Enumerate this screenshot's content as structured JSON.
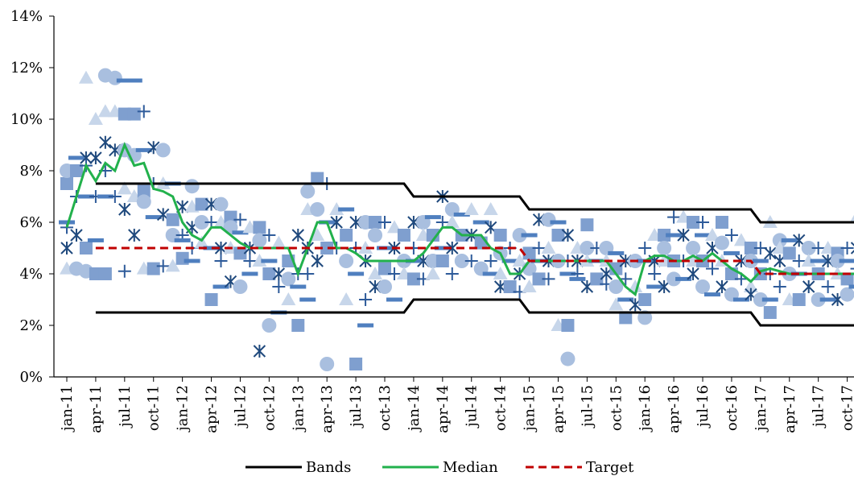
{
  "chart_data": {
    "type": "line",
    "y_ticks": [
      "0%",
      "2%",
      "4%",
      "6%",
      "8%",
      "10%",
      "12%",
      "14%"
    ],
    "ylim": [
      0,
      14
    ],
    "x_ticks": [
      "jan-11",
      "apr-11",
      "jul-11",
      "oct-11",
      "jan-12",
      "apr-12",
      "jul-12",
      "oct-12",
      "jan-13",
      "apr-13",
      "jul-13",
      "oct-13",
      "jan-14",
      "apr-14",
      "jul-14",
      "oct-14",
      "jan-15",
      "apr-15",
      "jul-15",
      "oct-15",
      "jan-16",
      "apr-16",
      "jul-16",
      "oct-16",
      "jan-17",
      "apr-17",
      "jul-17",
      "oct-17"
    ],
    "legend": {
      "placement": "bottom"
    },
    "grid": false,
    "colors": {
      "bands": "#000000",
      "median": "#22b14c",
      "target": "#c00000",
      "scatter": [
        "#1f497d",
        "#2e5b9a",
        "#4f7fbf",
        "#7f9fcf",
        "#a9bfdf",
        "#c7d6ea"
      ]
    },
    "series": [
      {
        "name": "Bands",
        "upper": [
          [
            "2011-04",
            7.5
          ],
          [
            "2013-12",
            7.5
          ],
          [
            "2014-01",
            7.0
          ],
          [
            "2014-12",
            7.0
          ],
          [
            "2015-01",
            6.5
          ],
          [
            "2016-12",
            6.5
          ],
          [
            "2017-01",
            6.0
          ],
          [
            "2017-12",
            6.0
          ]
        ],
        "lower": [
          [
            "2011-04",
            2.5
          ],
          [
            "2013-12",
            2.5
          ],
          [
            "2014-01",
            3.0
          ],
          [
            "2014-12",
            3.0
          ],
          [
            "2015-01",
            2.5
          ],
          [
            "2016-12",
            2.5
          ],
          [
            "2017-01",
            2.0
          ],
          [
            "2017-12",
            2.0
          ]
        ]
      },
      {
        "name": "Median",
        "points": [
          [
            "2011-01",
            5.8
          ],
          [
            "2011-02",
            7.0
          ],
          [
            "2011-03",
            8.2
          ],
          [
            "2011-04",
            7.6
          ],
          [
            "2011-05",
            8.3
          ],
          [
            "2011-06",
            8.0
          ],
          [
            "2011-07",
            9.0
          ],
          [
            "2011-08",
            8.2
          ],
          [
            "2011-09",
            8.3
          ],
          [
            "2011-10",
            7.3
          ],
          [
            "2011-11",
            7.2
          ],
          [
            "2011-12",
            7.0
          ],
          [
            "2012-01",
            6.0
          ],
          [
            "2012-02",
            5.5
          ],
          [
            "2012-03",
            5.3
          ],
          [
            "2012-04",
            5.8
          ],
          [
            "2012-05",
            5.8
          ],
          [
            "2012-06",
            5.5
          ],
          [
            "2012-07",
            5.2
          ],
          [
            "2012-08",
            5.0
          ],
          [
            "2012-09",
            5.0
          ],
          [
            "2012-10",
            5.0
          ],
          [
            "2012-11",
            5.0
          ],
          [
            "2012-12",
            5.0
          ],
          [
            "2013-01",
            4.0
          ],
          [
            "2013-02",
            5.0
          ],
          [
            "2013-03",
            6.0
          ],
          [
            "2013-04",
            6.0
          ],
          [
            "2013-05",
            5.0
          ],
          [
            "2013-06",
            5.0
          ],
          [
            "2013-07",
            4.8
          ],
          [
            "2013-08",
            4.5
          ],
          [
            "2013-09",
            4.5
          ],
          [
            "2013-10",
            4.5
          ],
          [
            "2013-11",
            4.5
          ],
          [
            "2013-12",
            4.5
          ],
          [
            "2014-01",
            4.5
          ],
          [
            "2014-02",
            4.8
          ],
          [
            "2014-03",
            5.3
          ],
          [
            "2014-04",
            5.8
          ],
          [
            "2014-05",
            5.8
          ],
          [
            "2014-06",
            5.5
          ],
          [
            "2014-07",
            5.5
          ],
          [
            "2014-08",
            5.5
          ],
          [
            "2014-09",
            5.0
          ],
          [
            "2014-10",
            4.8
          ],
          [
            "2014-11",
            4.0
          ],
          [
            "2014-12",
            4.0
          ],
          [
            "2015-01",
            4.5
          ],
          [
            "2015-02",
            4.5
          ],
          [
            "2015-03",
            4.5
          ],
          [
            "2015-04",
            4.5
          ],
          [
            "2015-05",
            4.5
          ],
          [
            "2015-06",
            4.5
          ],
          [
            "2015-07",
            4.5
          ],
          [
            "2015-08",
            4.5
          ],
          [
            "2015-09",
            4.5
          ],
          [
            "2015-10",
            4.0
          ],
          [
            "2015-11",
            3.5
          ],
          [
            "2015-12",
            3.2
          ],
          [
            "2016-01",
            4.5
          ],
          [
            "2016-02",
            4.7
          ],
          [
            "2016-03",
            4.7
          ],
          [
            "2016-04",
            4.5
          ],
          [
            "2016-05",
            4.5
          ],
          [
            "2016-06",
            4.7
          ],
          [
            "2016-07",
            4.5
          ],
          [
            "2016-08",
            4.8
          ],
          [
            "2016-09",
            4.5
          ],
          [
            "2016-10",
            4.2
          ],
          [
            "2016-11",
            4.0
          ],
          [
            "2016-12",
            3.7
          ],
          [
            "2017-01",
            4.1
          ],
          [
            "2017-02",
            4.2
          ],
          [
            "2017-03",
            4.1
          ],
          [
            "2017-04",
            4.0
          ],
          [
            "2017-05",
            4.0
          ],
          [
            "2017-06",
            4.0
          ],
          [
            "2017-07",
            4.0
          ],
          [
            "2017-08",
            4.0
          ],
          [
            "2017-09",
            4.0
          ],
          [
            "2017-10",
            4.0
          ],
          [
            "2017-11",
            4.0
          ],
          [
            "2017-12",
            4.5
          ]
        ]
      },
      {
        "name": "Target",
        "points": [
          [
            "2011-04",
            5.0
          ],
          [
            "2014-12",
            5.0
          ],
          [
            "2015-01",
            4.5
          ],
          [
            "2016-12",
            4.5
          ],
          [
            "2017-01",
            4.0
          ],
          [
            "2017-12",
            4.0
          ]
        ]
      }
    ],
    "scatter_samples": [
      {
        "x": "2011-01",
        "y": [
          5.0,
          5.8,
          6.0,
          7.5,
          8.0,
          4.2
        ]
      },
      {
        "x": "2011-02",
        "y": [
          5.5,
          7.0,
          8.5,
          8.0,
          4.2
        ]
      },
      {
        "x": "2011-03",
        "y": [
          11.6,
          8.5,
          8.2,
          7.0,
          5.0,
          4.1
        ]
      },
      {
        "x": "2011-04",
        "y": [
          10.0,
          8.5,
          7.0,
          5.3,
          4.0
        ]
      },
      {
        "x": "2011-05",
        "y": [
          11.7,
          10.3,
          9.1,
          8.0,
          7.0,
          4.0
        ]
      },
      {
        "x": "2011-06",
        "y": [
          11.6,
          10.3,
          8.8,
          7.0
        ]
      },
      {
        "x": "2011-07",
        "y": [
          11.5,
          10.2,
          8.8,
          7.3,
          6.5,
          4.1
        ]
      },
      {
        "x": "2011-08",
        "y": [
          11.5,
          10.2,
          8.6,
          7.0,
          5.5
        ]
      },
      {
        "x": "2011-09",
        "y": [
          10.3,
          8.8,
          7.2,
          6.8,
          4.2
        ]
      },
      {
        "x": "2011-10",
        "y": [
          8.9,
          7.5,
          6.2,
          4.2
        ]
      },
      {
        "x": "2011-11",
        "y": [
          8.8,
          7.5,
          6.3,
          4.3
        ]
      },
      {
        "x": "2011-12",
        "y": [
          7.5,
          6.1,
          5.5,
          4.3
        ]
      },
      {
        "x": "2012-01",
        "y": [
          6.6,
          5.5,
          5.3,
          4.6
        ]
      },
      {
        "x": "2012-02",
        "y": [
          7.4,
          6.6,
          5.8,
          5.0,
          4.5
        ]
      },
      {
        "x": "2012-03",
        "y": [
          6.7,
          6.0,
          5.2
        ]
      },
      {
        "x": "2012-04",
        "y": [
          6.7,
          6.0,
          5.0,
          3.0
        ]
      },
      {
        "x": "2012-05",
        "y": [
          6.7,
          6.0,
          5.0,
          4.5,
          3.5
        ]
      },
      {
        "x": "2012-06",
        "y": [
          6.2,
          5.8,
          5.0,
          3.7
        ]
      },
      {
        "x": "2012-07",
        "y": [
          6.1,
          5.6,
          4.8,
          3.5
        ]
      },
      {
        "x": "2012-08",
        "y": [
          5.8,
          5.0,
          4.5,
          4.0
        ]
      },
      {
        "x": "2012-09",
        "y": [
          5.8,
          5.3,
          4.5,
          1.0
        ]
      },
      {
        "x": "2012-10",
        "y": [
          5.5,
          4.5,
          4.0,
          2.0
        ]
      },
      {
        "x": "2012-11",
        "y": [
          5.2,
          4.0,
          3.5,
          2.5
        ]
      },
      {
        "x": "2012-12",
        "y": [
          4.5,
          3.8,
          3.0
        ]
      },
      {
        "x": "2013-01",
        "y": [
          5.5,
          4.0,
          3.5,
          2.0
        ]
      },
      {
        "x": "2013-02",
        "y": [
          7.2,
          6.5,
          5.0,
          4.0,
          3.0
        ]
      },
      {
        "x": "2013-03",
        "y": [
          7.7,
          6.5,
          5.5,
          4.5
        ]
      },
      {
        "x": "2013-04",
        "y": [
          7.5,
          6.0,
          5.0,
          0.5
        ]
      },
      {
        "x": "2013-05",
        "y": [
          6.5,
          6.0,
          5.0
        ]
      },
      {
        "x": "2013-06",
        "y": [
          6.5,
          5.5,
          4.5,
          3.0
        ]
      },
      {
        "x": "2013-07",
        "y": [
          6.0,
          5.0,
          4.0,
          0.5
        ]
      },
      {
        "x": "2013-08",
        "y": [
          6.0,
          5.0,
          4.5,
          3.0,
          2.0
        ]
      },
      {
        "x": "2013-09",
        "y": [
          6.0,
          5.5,
          4.0,
          3.5
        ]
      },
      {
        "x": "2013-10",
        "y": [
          6.0,
          5.0,
          4.2,
          3.5
        ]
      },
      {
        "x": "2013-11",
        "y": [
          5.8,
          5.0,
          4.0,
          3.0
        ]
      },
      {
        "x": "2013-12",
        "y": [
          5.5,
          4.5,
          4.0
        ]
      },
      {
        "x": "2014-01",
        "y": [
          6.0,
          5.0,
          4.5,
          3.8
        ]
      },
      {
        "x": "2014-02",
        "y": [
          6.0,
          5.5,
          4.5,
          3.8
        ]
      },
      {
        "x": "2014-03",
        "y": [
          6.2,
          5.5,
          4.5,
          4.0
        ]
      },
      {
        "x": "2014-04",
        "y": [
          7.0,
          6.0,
          5.0,
          4.5
        ]
      },
      {
        "x": "2014-05",
        "y": [
          6.5,
          6.0,
          5.0,
          4.0
        ]
      },
      {
        "x": "2014-06",
        "y": [
          6.3,
          5.5,
          4.5
        ]
      },
      {
        "x": "2014-07",
        "y": [
          6.5,
          5.5,
          4.5
        ]
      },
      {
        "x": "2014-08",
        "y": [
          6.0,
          5.2,
          4.2
        ]
      },
      {
        "x": "2014-09",
        "y": [
          6.5,
          5.8,
          4.5,
          4.0
        ]
      },
      {
        "x": "2014-10",
        "y": [
          5.5,
          4.8,
          4.0,
          3.5
        ]
      },
      {
        "x": "2014-11",
        "y": [
          5.0,
          4.5,
          3.5
        ]
      },
      {
        "x": "2014-12",
        "y": [
          5.5,
          4.5,
          4.0,
          3.3
        ]
      },
      {
        "x": "2015-01",
        "y": [
          5.5,
          4.8,
          4.2,
          3.5
        ]
      },
      {
        "x": "2015-02",
        "y": [
          6.1,
          5.0,
          4.5,
          3.8
        ]
      },
      {
        "x": "2015-03",
        "y": [
          6.1,
          5.0,
          4.5,
          3.8
        ]
      },
      {
        "x": "2015-04",
        "y": [
          6.0,
          5.5,
          4.5,
          2.0
        ]
      },
      {
        "x": "2015-05",
        "y": [
          5.5,
          4.5,
          4.0,
          2.0,
          0.7
        ]
      },
      {
        "x": "2015-06",
        "y": [
          5.0,
          4.5,
          4.0,
          3.8
        ]
      },
      {
        "x": "2015-07",
        "y": [
          5.9,
          5.0,
          4.5,
          3.5
        ]
      },
      {
        "x": "2015-08",
        "y": [
          5.0,
          4.5,
          3.8
        ]
      },
      {
        "x": "2015-09",
        "y": [
          5.0,
          4.5,
          4.0,
          3.6
        ]
      },
      {
        "x": "2015-10",
        "y": [
          4.8,
          4.2,
          3.5,
          2.8
        ]
      },
      {
        "x": "2015-11",
        "y": [
          4.5,
          3.8,
          3.0,
          2.3
        ]
      },
      {
        "x": "2015-12",
        "y": [
          4.5,
          3.5,
          2.8
        ]
      },
      {
        "x": "2016-01",
        "y": [
          5.0,
          4.5,
          3.0,
          2.3
        ]
      },
      {
        "x": "2016-02",
        "y": [
          5.5,
          4.5,
          4.0,
          3.5
        ]
      },
      {
        "x": "2016-03",
        "y": [
          5.5,
          5.0,
          4.5,
          3.5
        ]
      },
      {
        "x": "2016-04",
        "y": [
          6.2,
          5.5,
          4.5,
          3.8
        ]
      },
      {
        "x": "2016-05",
        "y": [
          6.2,
          5.5,
          4.5,
          3.8
        ]
      },
      {
        "x": "2016-06",
        "y": [
          6.0,
          5.0,
          4.5,
          4.0
        ]
      },
      {
        "x": "2016-07",
        "y": [
          6.0,
          5.5,
          4.5,
          3.5
        ]
      },
      {
        "x": "2016-08",
        "y": [
          5.5,
          5.0,
          4.2,
          3.2
        ]
      },
      {
        "x": "2016-09",
        "y": [
          6.0,
          5.2,
          4.5,
          3.5
        ]
      },
      {
        "x": "2016-10",
        "y": [
          5.5,
          4.8,
          4.0,
          3.2
        ]
      },
      {
        "x": "2016-11",
        "y": [
          5.3,
          4.5,
          3.8,
          3.0
        ]
      },
      {
        "x": "2016-12",
        "y": [
          5.0,
          4.5,
          3.5,
          3.2
        ]
      },
      {
        "x": "2017-01",
        "y": [
          5.0,
          4.5,
          4.0,
          3.0
        ]
      },
      {
        "x": "2017-02",
        "y": [
          6.0,
          4.8,
          4.0,
          3.0,
          2.5
        ]
      },
      {
        "x": "2017-03",
        "y": [
          5.3,
          5.0,
          4.5,
          3.5
        ]
      },
      {
        "x": "2017-04",
        "y": [
          5.3,
          4.8,
          4.0,
          3.0
        ]
      },
      {
        "x": "2017-05",
        "y": [
          5.3,
          4.5,
          4.0,
          3.0
        ]
      },
      {
        "x": "2017-06",
        "y": [
          5.0,
          4.5,
          3.5
        ]
      },
      {
        "x": "2017-07",
        "y": [
          5.0,
          4.5,
          4.0,
          3.0
        ]
      },
      {
        "x": "2017-08",
        "y": [
          5.0,
          4.5,
          3.5,
          3.0
        ]
      },
      {
        "x": "2017-09",
        "y": [
          4.8,
          4.5,
          4.0,
          3.0
        ]
      },
      {
        "x": "2017-10",
        "y": [
          5.0,
          4.5,
          3.8,
          3.2
        ]
      },
      {
        "x": "2017-11",
        "y": [
          6.2,
          5.0,
          4.2,
          3.5
        ]
      },
      {
        "x": "2017-12",
        "y": [
          5.0,
          4.5,
          3.5
        ]
      }
    ]
  }
}
